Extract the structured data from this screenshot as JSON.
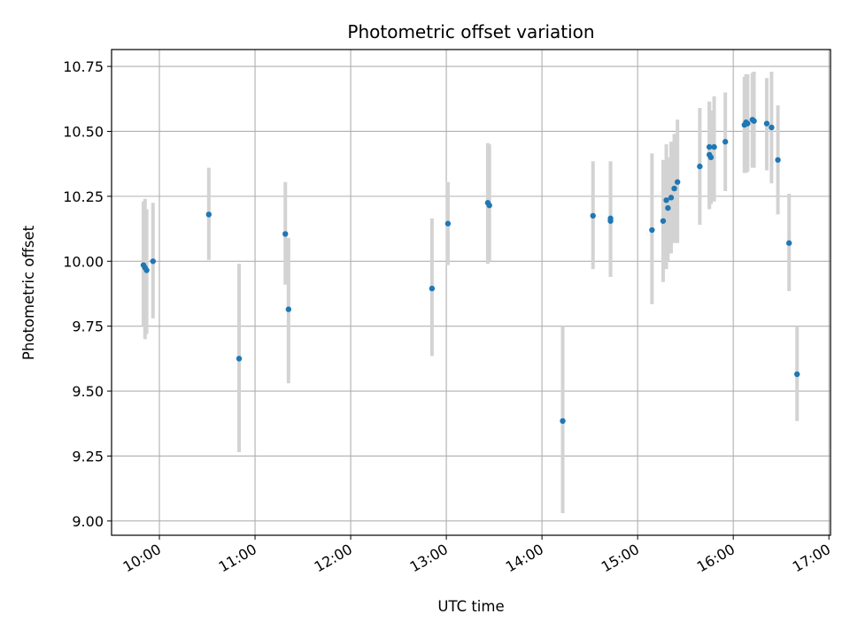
{
  "chart_data": {
    "type": "scatter",
    "title": "Photometric offset variation",
    "xlabel": "UTC time",
    "ylabel": "Photometric offset",
    "x_tick_labels": [
      "10:00",
      "11:00",
      "12:00",
      "13:00",
      "14:00",
      "15:00",
      "16:00",
      "17:00"
    ],
    "y_tick_labels": [
      "9.00",
      "9.25",
      "9.50",
      "9.75",
      "10.00",
      "10.25",
      "10.50",
      "10.75"
    ],
    "xlim": [
      "09:30",
      "17:01"
    ],
    "ylim": [
      8.945,
      10.815
    ],
    "grid": true,
    "marker_color": "#1f77b4",
    "errorbar_color": "#d3d3d3",
    "series": [
      {
        "points": [
          {
            "x": "09:50",
            "y": 9.985,
            "lo": 9.75,
            "hi": 10.23
          },
          {
            "x": "09:51",
            "y": 9.975,
            "lo": 9.7,
            "hi": 10.24
          },
          {
            "x": "09:52",
            "y": 9.965,
            "lo": 9.72,
            "hi": 10.2
          },
          {
            "x": "09:56",
            "y": 10.0,
            "lo": 9.78,
            "hi": 10.225
          },
          {
            "x": "10:31",
            "y": 10.18,
            "lo": 10.005,
            "hi": 10.36
          },
          {
            "x": "10:50",
            "y": 9.625,
            "lo": 9.265,
            "hi": 9.99
          },
          {
            "x": "11:19",
            "y": 10.105,
            "lo": 9.91,
            "hi": 10.305
          },
          {
            "x": "11:21",
            "y": 9.815,
            "lo": 9.53,
            "hi": 10.09
          },
          {
            "x": "12:51",
            "y": 9.895,
            "lo": 9.635,
            "hi": 10.165
          },
          {
            "x": "13:01",
            "y": 10.145,
            "lo": 9.985,
            "hi": 10.305
          },
          {
            "x": "13:26",
            "y": 10.225,
            "lo": 9.99,
            "hi": 10.455
          },
          {
            "x": "13:27",
            "y": 10.215,
            "lo": 10.0,
            "hi": 10.45
          },
          {
            "x": "14:13",
            "y": 9.385,
            "lo": 9.03,
            "hi": 9.75
          },
          {
            "x": "14:32",
            "y": 10.175,
            "lo": 9.97,
            "hi": 10.385
          },
          {
            "x": "14:43",
            "y": 10.165,
            "lo": 9.94,
            "hi": 10.385
          },
          {
            "x": "14:43",
            "y": 10.155,
            "lo": 9.94,
            "hi": 10.38
          },
          {
            "x": "15:09",
            "y": 10.12,
            "lo": 9.835,
            "hi": 10.415
          },
          {
            "x": "15:16",
            "y": 10.155,
            "lo": 9.92,
            "hi": 10.39
          },
          {
            "x": "15:18",
            "y": 10.235,
            "lo": 9.97,
            "hi": 10.45
          },
          {
            "x": "15:19",
            "y": 10.205,
            "lo": 10.0,
            "hi": 10.4
          },
          {
            "x": "15:21",
            "y": 10.245,
            "lo": 10.03,
            "hi": 10.46
          },
          {
            "x": "15:23",
            "y": 10.28,
            "lo": 10.07,
            "hi": 10.49
          },
          {
            "x": "15:25",
            "y": 10.305,
            "lo": 10.07,
            "hi": 10.545
          },
          {
            "x": "15:39",
            "y": 10.365,
            "lo": 10.14,
            "hi": 10.59
          },
          {
            "x": "15:45",
            "y": 10.44,
            "lo": 10.21,
            "hi": 10.61
          },
          {
            "x": "15:45",
            "y": 10.41,
            "lo": 10.2,
            "hi": 10.615
          },
          {
            "x": "15:46",
            "y": 10.4,
            "lo": 10.22,
            "hi": 10.58
          },
          {
            "x": "15:48",
            "y": 10.44,
            "lo": 10.23,
            "hi": 10.635
          },
          {
            "x": "15:55",
            "y": 10.46,
            "lo": 10.27,
            "hi": 10.65
          },
          {
            "x": "16:07",
            "y": 10.525,
            "lo": 10.34,
            "hi": 10.71
          },
          {
            "x": "16:08",
            "y": 10.535,
            "lo": 10.34,
            "hi": 10.72
          },
          {
            "x": "16:09",
            "y": 10.53,
            "lo": 10.345,
            "hi": 10.72
          },
          {
            "x": "16:12",
            "y": 10.545,
            "lo": 10.36,
            "hi": 10.725
          },
          {
            "x": "16:13",
            "y": 10.54,
            "lo": 10.36,
            "hi": 10.73
          },
          {
            "x": "16:21",
            "y": 10.53,
            "lo": 10.35,
            "hi": 10.705
          },
          {
            "x": "16:24",
            "y": 10.515,
            "lo": 10.3,
            "hi": 10.73
          },
          {
            "x": "16:28",
            "y": 10.39,
            "lo": 10.18,
            "hi": 10.6
          },
          {
            "x": "16:35",
            "y": 10.07,
            "lo": 9.885,
            "hi": 10.26
          },
          {
            "x": "16:40",
            "y": 9.565,
            "lo": 9.385,
            "hi": 9.75
          }
        ]
      }
    ]
  }
}
